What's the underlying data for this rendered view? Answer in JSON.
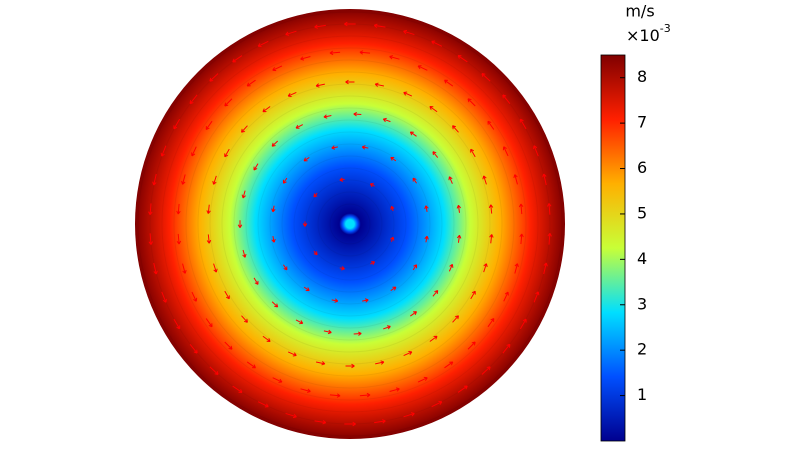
{
  "chart_data": {
    "type": "surface",
    "unit_label": "m/s",
    "multiplier_base": "×10",
    "multiplier_exponent": "-3",
    "clim": [
      0,
      8.5
    ],
    "cticks": [
      1,
      2,
      3,
      4,
      5,
      6,
      7,
      8
    ],
    "colormap": [
      "#00008f",
      "#0050ff",
      "#00dfff",
      "#c8ff37",
      "#ffb000",
      "#ff2000",
      "#800000"
    ],
    "arrow_color": "#ff0000"
  }
}
